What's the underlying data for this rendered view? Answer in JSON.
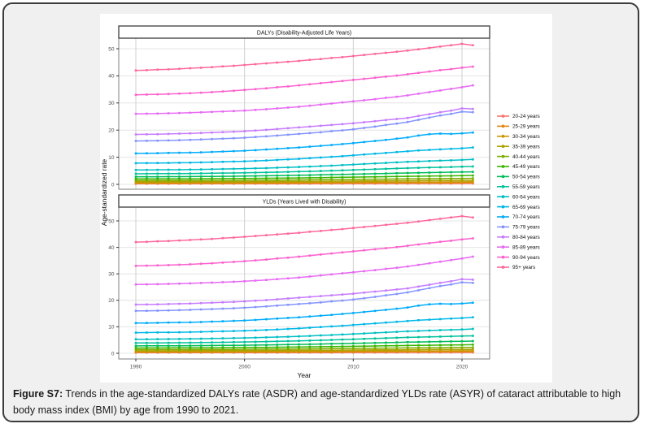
{
  "figure": {
    "caption_label": "Figure S7:",
    "caption_text": " Trends in the age-standardized DALYs rate (ASDR) and age-standardized YLDs rate (ASYR) of cataract attributable to high body mass index (BMI) by age from 1990 to 2021."
  },
  "chart_data": {
    "type": "line",
    "xlabel": "Year",
    "ylabel": "Age-standardized rate",
    "x_ticks": [
      1990,
      2000,
      2010,
      2020
    ],
    "y_ticks": [
      0,
      10,
      20,
      30,
      40,
      50
    ],
    "x_range": [
      1990,
      2021
    ],
    "ylim": [
      0,
      53
    ],
    "grid": true,
    "legend_position": "right",
    "panels": [
      {
        "title": "DALYs (Disability-Adjusted Life Years)"
      },
      {
        "title": "YLDs (Years Lived with Disability)"
      }
    ],
    "panels_share_series": true,
    "years": [
      1990,
      1991,
      1992,
      1993,
      1994,
      1995,
      1996,
      1997,
      1998,
      1999,
      2000,
      2001,
      2002,
      2003,
      2004,
      2005,
      2006,
      2007,
      2008,
      2009,
      2010,
      2011,
      2012,
      2013,
      2014,
      2015,
      2016,
      2017,
      2018,
      2019,
      2020,
      2021
    ],
    "series": [
      {
        "name": "20-24 years",
        "color": "#F8766D",
        "values": [
          0.22,
          0.22,
          0.22,
          0.22,
          0.22,
          0.22,
          0.23,
          0.23,
          0.23,
          0.23,
          0.23,
          0.24,
          0.24,
          0.24,
          0.25,
          0.25,
          0.25,
          0.26,
          0.26,
          0.27,
          0.27,
          0.28,
          0.28,
          0.29,
          0.29,
          0.3,
          0.3,
          0.31,
          0.31,
          0.31,
          0.32,
          0.32
        ]
      },
      {
        "name": "25-29 years",
        "color": "#E68613",
        "values": [
          0.38,
          0.38,
          0.38,
          0.39,
          0.39,
          0.39,
          0.39,
          0.4,
          0.4,
          0.4,
          0.41,
          0.42,
          0.42,
          0.43,
          0.43,
          0.44,
          0.45,
          0.46,
          0.46,
          0.47,
          0.48,
          0.49,
          0.5,
          0.51,
          0.52,
          0.53,
          0.54,
          0.55,
          0.55,
          0.56,
          0.57,
          0.58
        ]
      },
      {
        "name": "30-34 years",
        "color": "#C99800",
        "values": [
          0.62,
          0.62,
          0.62,
          0.63,
          0.63,
          0.63,
          0.64,
          0.64,
          0.65,
          0.65,
          0.66,
          0.67,
          0.68,
          0.7,
          0.71,
          0.72,
          0.73,
          0.75,
          0.76,
          0.78,
          0.79,
          0.81,
          0.82,
          0.84,
          0.85,
          0.87,
          0.88,
          0.9,
          0.91,
          0.93,
          0.94,
          0.95
        ]
      },
      {
        "name": "35-39 years",
        "color": "#ABA300",
        "values": [
          0.95,
          0.95,
          0.96,
          0.96,
          0.96,
          0.97,
          0.98,
          0.99,
          1.0,
          1.01,
          1.02,
          1.04,
          1.06,
          1.07,
          1.09,
          1.11,
          1.13,
          1.16,
          1.18,
          1.2,
          1.23,
          1.25,
          1.28,
          1.31,
          1.33,
          1.36,
          1.38,
          1.4,
          1.43,
          1.45,
          1.47,
          1.48
        ]
      },
      {
        "name": "40-44 years",
        "color": "#7CAE00",
        "values": [
          1.4,
          1.4,
          1.41,
          1.42,
          1.42,
          1.43,
          1.44,
          1.46,
          1.47,
          1.48,
          1.5,
          1.53,
          1.56,
          1.59,
          1.62,
          1.65,
          1.68,
          1.72,
          1.75,
          1.79,
          1.83,
          1.87,
          1.91,
          1.95,
          1.99,
          2.03,
          2.06,
          2.1,
          2.13,
          2.17,
          2.2,
          2.22
        ]
      },
      {
        "name": "45-49 years",
        "color": "#39B600",
        "values": [
          2.0,
          2.01,
          2.02,
          2.03,
          2.04,
          2.05,
          2.07,
          2.1,
          2.12,
          2.14,
          2.17,
          2.21,
          2.25,
          2.29,
          2.33,
          2.38,
          2.43,
          2.48,
          2.54,
          2.59,
          2.65,
          2.71,
          2.77,
          2.83,
          2.89,
          2.95,
          3.0,
          3.05,
          3.1,
          3.15,
          3.2,
          3.25
        ]
      },
      {
        "name": "50-54 years",
        "color": "#00BC59",
        "values": [
          2.8,
          2.81,
          2.82,
          2.84,
          2.85,
          2.87,
          2.9,
          2.94,
          2.97,
          3.0,
          3.05,
          3.1,
          3.16,
          3.22,
          3.28,
          3.35,
          3.42,
          3.5,
          3.58,
          3.66,
          3.75,
          3.84,
          3.93,
          4.02,
          4.11,
          4.2,
          4.27,
          4.34,
          4.41,
          4.48,
          4.55,
          4.6
        ]
      },
      {
        "name": "55-59 years",
        "color": "#00C19C",
        "values": [
          3.9,
          3.92,
          3.94,
          3.96,
          3.98,
          4.0,
          4.05,
          4.1,
          4.15,
          4.2,
          4.25,
          4.33,
          4.42,
          4.5,
          4.6,
          4.7,
          4.8,
          4.92,
          5.04,
          5.17,
          5.3,
          5.44,
          5.58,
          5.72,
          5.86,
          6.0,
          6.1,
          6.2,
          6.3,
          6.4,
          6.5,
          6.6
        ]
      },
      {
        "name": "60-64 years",
        "color": "#00BFC4",
        "values": [
          5.3,
          5.32,
          5.35,
          5.38,
          5.4,
          5.45,
          5.5,
          5.58,
          5.65,
          5.72,
          5.8,
          5.9,
          6.0,
          6.15,
          6.25,
          6.4,
          6.55,
          6.75,
          6.9,
          7.1,
          7.3,
          7.5,
          7.7,
          7.9,
          8.1,
          8.3,
          8.45,
          8.6,
          8.75,
          8.85,
          9.0,
          9.2
        ]
      },
      {
        "name": "65-69 years",
        "color": "#00B8E7",
        "values": [
          7.8,
          7.83,
          7.87,
          7.9,
          7.95,
          8.0,
          8.1,
          8.2,
          8.3,
          8.4,
          8.5,
          8.65,
          8.8,
          9.0,
          9.2,
          9.4,
          9.65,
          9.9,
          10.15,
          10.4,
          10.7,
          11.0,
          11.3,
          11.6,
          11.9,
          12.2,
          12.5,
          12.7,
          12.9,
          13.1,
          13.3,
          13.6
        ]
      },
      {
        "name": "70-74 years",
        "color": "#00ACFC",
        "values": [
          11.4,
          11.45,
          11.5,
          11.6,
          11.65,
          11.7,
          11.8,
          11.95,
          12.1,
          12.25,
          12.4,
          12.6,
          12.85,
          13.1,
          13.35,
          13.6,
          13.9,
          14.2,
          14.5,
          14.85,
          15.2,
          15.6,
          16.0,
          16.4,
          16.85,
          17.3,
          18.0,
          18.5,
          18.7,
          18.6,
          18.8,
          19.1
        ]
      },
      {
        "name": "75-79 years",
        "color": "#8494FF",
        "values": [
          16.0,
          16.05,
          16.1,
          16.2,
          16.3,
          16.4,
          16.55,
          16.7,
          16.85,
          17.0,
          17.2,
          17.45,
          17.7,
          18.0,
          18.3,
          18.6,
          18.9,
          19.2,
          19.6,
          19.9,
          20.3,
          20.8,
          21.3,
          21.9,
          22.4,
          23.0,
          23.8,
          24.6,
          25.4,
          26.0,
          26.8,
          26.6
        ]
      },
      {
        "name": "80-84 years",
        "color": "#C77CFF",
        "values": [
          18.4,
          18.45,
          18.5,
          18.6,
          18.7,
          18.8,
          18.95,
          19.1,
          19.25,
          19.4,
          19.6,
          19.85,
          20.1,
          20.4,
          20.7,
          21.0,
          21.3,
          21.6,
          21.9,
          22.2,
          22.5,
          22.9,
          23.3,
          23.7,
          24.1,
          24.5,
          25.2,
          25.9,
          26.6,
          27.2,
          28.0,
          27.8
        ]
      },
      {
        "name": "85-89 years",
        "color": "#E76BF3",
        "values": [
          26.0,
          26.05,
          26.1,
          26.2,
          26.3,
          26.4,
          26.55,
          26.7,
          26.85,
          27.0,
          27.2,
          27.45,
          27.7,
          28.0,
          28.3,
          28.6,
          29.0,
          29.4,
          29.8,
          30.2,
          30.6,
          31.0,
          31.4,
          31.9,
          32.3,
          32.8,
          33.4,
          34.0,
          34.6,
          35.2,
          35.8,
          36.5
        ]
      },
      {
        "name": "90-94 years",
        "color": "#FC61CE",
        "values": [
          33.0,
          33.1,
          33.2,
          33.3,
          33.45,
          33.6,
          33.8,
          34.0,
          34.25,
          34.5,
          34.8,
          35.1,
          35.4,
          35.8,
          36.1,
          36.5,
          36.9,
          37.3,
          37.7,
          38.1,
          38.5,
          38.9,
          39.3,
          39.7,
          40.1,
          40.6,
          41.1,
          41.6,
          42.1,
          42.5,
          43.0,
          43.4
        ]
      },
      {
        "name": "95+ years",
        "color": "#FF689E",
        "values": [
          42.0,
          42.1,
          42.3,
          42.4,
          42.6,
          42.8,
          43.0,
          43.2,
          43.5,
          43.7,
          44.0,
          44.3,
          44.6,
          44.9,
          45.2,
          45.5,
          45.9,
          46.2,
          46.6,
          46.9,
          47.3,
          47.7,
          48.1,
          48.5,
          48.9,
          49.3,
          49.8,
          50.3,
          50.8,
          51.3,
          51.8,
          51.3
        ]
      }
    ],
    "colors": {
      "grid_horizontal": "#e4e4e4",
      "grid_vertical": "#cfcfcf",
      "panel_border": "#7f7f7f",
      "strip_border": "#4a4a4a",
      "axis_text": "#4d4d4d",
      "text": "#111111"
    }
  }
}
